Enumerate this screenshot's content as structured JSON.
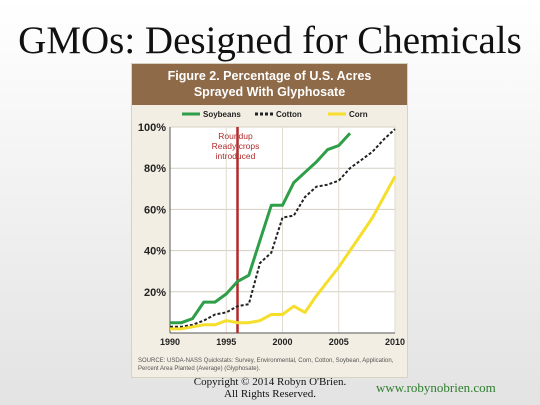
{
  "slide": {
    "title": "GMOs: Designed for Chemicals",
    "copyright_line1": "Copyright © 2014 Robyn O'Brien.",
    "copyright_line2": "All Rights Reserved.",
    "website": "www.robynobrien.com"
  },
  "chart_data": {
    "type": "line",
    "title_line1": "Figure 2. Percentage of U.S. Acres",
    "title_line2": "Sprayed With Glyphosate",
    "xlabel": "",
    "ylabel": "",
    "xlim": [
      1990,
      2010
    ],
    "ylim": [
      0,
      100
    ],
    "x_ticks": [
      1990,
      1995,
      2000,
      2005,
      2010
    ],
    "y_ticks": [
      20,
      40,
      60,
      80,
      100
    ],
    "y_tick_labels": [
      "20%",
      "40%",
      "60%",
      "80%",
      "100%"
    ],
    "grid": true,
    "legend_position": "top",
    "annotation": {
      "x": 1996,
      "lines": [
        "Roundup",
        "Ready crops",
        "introduced"
      ],
      "color": "#b22a2a"
    },
    "source_line1": "SOURCE: USDA-NASS Quickstats: Survey, Environmental, Corn, Cotton, Soybean, Application,",
    "source_line2": "Percent Area Planted (Average) (Glyphosate).",
    "series": [
      {
        "name": "Soybeans",
        "color": "#2e9e48",
        "style": "solid",
        "x": [
          1990,
          1991,
          1992,
          1993,
          1994,
          1995,
          1996,
          1997,
          1998,
          1999,
          2000,
          2001,
          2002,
          2003,
          2004,
          2005,
          2006
        ],
        "y": [
          5,
          5,
          7,
          15,
          15,
          19,
          25,
          28,
          45,
          62,
          62,
          73,
          78,
          83,
          89,
          91,
          97
        ]
      },
      {
        "name": "Cotton",
        "color": "#222222",
        "style": "dashed",
        "x": [
          1990,
          1991,
          1992,
          1993,
          1994,
          1995,
          1996,
          1997,
          1998,
          1999,
          2000,
          2001,
          2002,
          2003,
          2004,
          2005,
          2006,
          2007,
          2008,
          2009,
          2010
        ],
        "y": [
          3,
          3,
          4,
          6,
          9,
          10,
          13,
          14,
          34,
          39,
          56,
          57,
          66,
          71,
          72,
          74,
          80,
          84,
          88,
          94,
          99
        ]
      },
      {
        "name": "Corn",
        "color": "#f5de2c",
        "style": "solid",
        "x": [
          1990,
          1991,
          1992,
          1993,
          1994,
          1995,
          1996,
          1997,
          1998,
          1999,
          2000,
          2001,
          2002,
          2003,
          2004,
          2005,
          2006,
          2007,
          2008,
          2009,
          2010
        ],
        "y": [
          2,
          2,
          3,
          4,
          4,
          6,
          5,
          5,
          6,
          9,
          9,
          13,
          10,
          18,
          25,
          32,
          40,
          48,
          56,
          66,
          76
        ]
      }
    ]
  }
}
